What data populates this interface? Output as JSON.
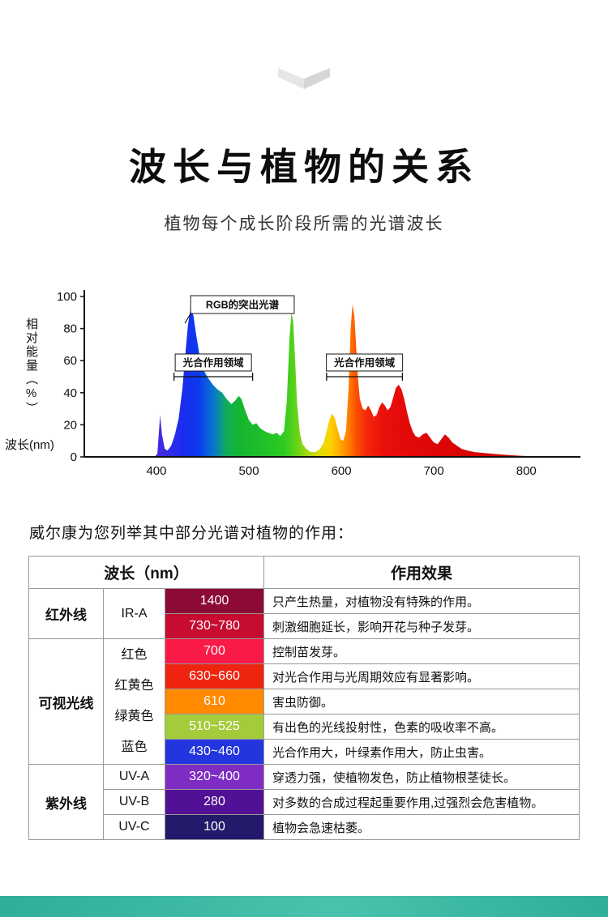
{
  "page": {
    "title": "波长与植物的关系",
    "subtitle": "植物每个成长阶段所需的光谱波长",
    "intro": "威尔康为您列举其中部分光谱对植物的作用："
  },
  "colors": {
    "footer_teal": "#2fae9a",
    "footer_teal_light": "#49c3ab",
    "chevron_left": "#e6e6e6",
    "chevron_right": "#d6d6d6"
  },
  "chart_data": {
    "type": "area",
    "title": "",
    "xlabel": "波长(nm)",
    "ylabel": "相对能量（%）",
    "xlim": [
      322,
      855
    ],
    "ylim": [
      0,
      100
    ],
    "xticks": [
      400,
      500,
      600,
      700,
      800
    ],
    "yticks": [
      0,
      20,
      40,
      60,
      80,
      100
    ],
    "grid": false,
    "legend": false,
    "rgb_annotation": {
      "label": "RGB的突出光谱",
      "box_nm": [
        437,
        549
      ],
      "point_nm": 437,
      "point_pct": 93
    },
    "regions": [
      {
        "label": "光合作用领域",
        "nm_range": [
          419,
          504
        ],
        "line_pct": 50
      },
      {
        "label": "光合作用领域",
        "nm_range": [
          584,
          666
        ],
        "line_pct": 50
      }
    ],
    "gradient_stops": [
      [
        398,
        "#4a2ae0"
      ],
      [
        428,
        "#1b2cee"
      ],
      [
        446,
        "#0b3bee"
      ],
      [
        462,
        "#0977cf"
      ],
      [
        476,
        "#0fae57"
      ],
      [
        490,
        "#16b52f"
      ],
      [
        515,
        "#1fc02a"
      ],
      [
        538,
        "#2ecb22"
      ],
      [
        550,
        "#5ed318"
      ],
      [
        562,
        "#9fd60e"
      ],
      [
        576,
        "#dcdc04"
      ],
      [
        588,
        "#fdd200"
      ],
      [
        598,
        "#ffab00"
      ],
      [
        608,
        "#ff7d00"
      ],
      [
        616,
        "#fc5102"
      ],
      [
        628,
        "#f42608"
      ],
      [
        645,
        "#ea100c"
      ],
      [
        670,
        "#e40909"
      ],
      [
        720,
        "#da0505"
      ],
      [
        814,
        "#c90303"
      ]
    ],
    "spectrum": [
      [
        398,
        0
      ],
      [
        401,
        2
      ],
      [
        404,
        26
      ],
      [
        406,
        14
      ],
      [
        409,
        5
      ],
      [
        412,
        4
      ],
      [
        416,
        7
      ],
      [
        420,
        14
      ],
      [
        424,
        24
      ],
      [
        428,
        42
      ],
      [
        431,
        62
      ],
      [
        434,
        82
      ],
      [
        437,
        93
      ],
      [
        440,
        88
      ],
      [
        443,
        76
      ],
      [
        447,
        62
      ],
      [
        451,
        54
      ],
      [
        456,
        49
      ],
      [
        461,
        45
      ],
      [
        466,
        42
      ],
      [
        471,
        40
      ],
      [
        476,
        36
      ],
      [
        481,
        33
      ],
      [
        485,
        35
      ],
      [
        489,
        38
      ],
      [
        492,
        36
      ],
      [
        496,
        29
      ],
      [
        500,
        23
      ],
      [
        504,
        20
      ],
      [
        508,
        21
      ],
      [
        512,
        18
      ],
      [
        517,
        16
      ],
      [
        521,
        15
      ],
      [
        526,
        14
      ],
      [
        530,
        15
      ],
      [
        534,
        13
      ],
      [
        538,
        16
      ],
      [
        541,
        35
      ],
      [
        544,
        75
      ],
      [
        546,
        90
      ],
      [
        548,
        84
      ],
      [
        550,
        60
      ],
      [
        552,
        34
      ],
      [
        555,
        15
      ],
      [
        558,
        8
      ],
      [
        562,
        5
      ],
      [
        567,
        3
      ],
      [
        572,
        3
      ],
      [
        577,
        5
      ],
      [
        581,
        9
      ],
      [
        584,
        16
      ],
      [
        587,
        23
      ],
      [
        590,
        27
      ],
      [
        593,
        24
      ],
      [
        596,
        17
      ],
      [
        599,
        11
      ],
      [
        602,
        10
      ],
      [
        605,
        16
      ],
      [
        608,
        45
      ],
      [
        610,
        80
      ],
      [
        612,
        95
      ],
      [
        614,
        88
      ],
      [
        616,
        68
      ],
      [
        618,
        48
      ],
      [
        620,
        36
      ],
      [
        623,
        30
      ],
      [
        626,
        29
      ],
      [
        629,
        32
      ],
      [
        632,
        29
      ],
      [
        635,
        25
      ],
      [
        638,
        26
      ],
      [
        641,
        31
      ],
      [
        644,
        34
      ],
      [
        647,
        32
      ],
      [
        650,
        29
      ],
      [
        653,
        31
      ],
      [
        656,
        37
      ],
      [
        659,
        43
      ],
      [
        662,
        45
      ],
      [
        665,
        42
      ],
      [
        668,
        36
      ],
      [
        671,
        28
      ],
      [
        674,
        21
      ],
      [
        677,
        16
      ],
      [
        680,
        13
      ],
      [
        684,
        12
      ],
      [
        688,
        14
      ],
      [
        692,
        15
      ],
      [
        696,
        12
      ],
      [
        700,
        9
      ],
      [
        704,
        8
      ],
      [
        708,
        11
      ],
      [
        712,
        14
      ],
      [
        716,
        12
      ],
      [
        720,
        9
      ],
      [
        725,
        7
      ],
      [
        730,
        5
      ],
      [
        736,
        4
      ],
      [
        744,
        3
      ],
      [
        752,
        2.5
      ],
      [
        762,
        2
      ],
      [
        772,
        1.5
      ],
      [
        784,
        1
      ],
      [
        796,
        0.6
      ],
      [
        808,
        0.3
      ],
      [
        814,
        0
      ]
    ]
  },
  "table": {
    "header": {
      "wavelength": "波长（nm）",
      "effect": "作用效果"
    },
    "groups": [
      {
        "category": "红外线",
        "sub_merged": [
          "IR-A"
        ],
        "rows": [
          {
            "wl": "1400",
            "color": "#8c0a35",
            "effect": "只产生热量，对植物没有特殊的作用。"
          },
          {
            "wl": "730~780",
            "color": "#c60d31",
            "effect": "刺激细胞延长，影响开花与种子发芽。"
          }
        ]
      },
      {
        "category": "可视光线",
        "sub_merged": [
          "红色",
          "红黄色",
          "绿黄色",
          "蓝色"
        ],
        "rows": [
          {
            "wl": "700",
            "color": "#fa1a47",
            "effect": "控制苗发芽。"
          },
          {
            "wl": "630~660",
            "color": "#ef2410",
            "effect": "对光合作用与光周期效应有显著影响。"
          },
          {
            "wl": "610",
            "color": "#ff8a00",
            "effect": "害虫防御。"
          },
          {
            "wl": "510~525",
            "color": "#a4cb3a",
            "effect": "有出色的光线投射性，色素的吸收率不高。"
          },
          {
            "wl": "430~460",
            "color": "#2335de",
            "effect": "光合作用大，叶绿素作用大，防止虫害。"
          }
        ]
      },
      {
        "category": "紫外线",
        "rows": [
          {
            "sub": "UV-A",
            "wl": "320~400",
            "color": "#7f2cc4",
            "effect": "穿透力强，使植物发色，防止植物根茎徒长。"
          },
          {
            "sub": "UV-B",
            "wl": "280",
            "color": "#511095",
            "effect": "对多数的合成过程起重要作用,过强烈会危害植物。"
          },
          {
            "sub": "UV-C",
            "wl": "100",
            "color": "#241a6b",
            "effect": "植物会急速枯萎。"
          }
        ]
      }
    ]
  }
}
